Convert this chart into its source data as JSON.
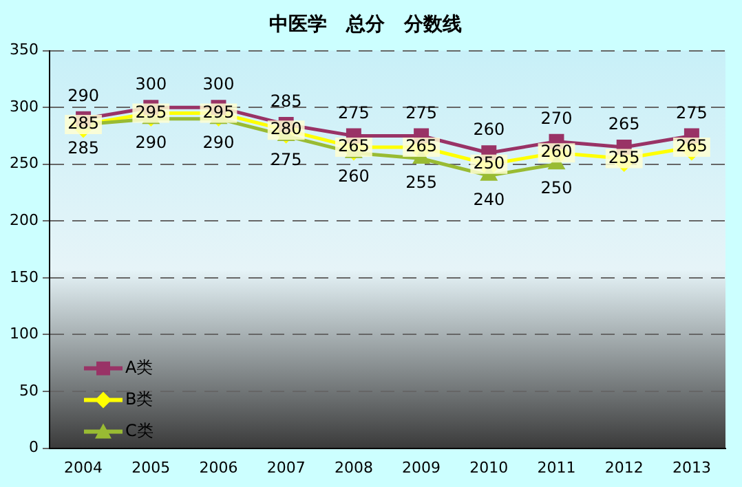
{
  "chart_data": {
    "type": "line",
    "title": "中医学　总分　分数线",
    "categories": [
      "2004",
      "2005",
      "2006",
      "2007",
      "2008",
      "2009",
      "2010",
      "2011",
      "2012",
      "2013"
    ],
    "series": [
      {
        "name": "A类",
        "color": "#993366",
        "marker": "square",
        "values": [
          290,
          300,
          300,
          285,
          275,
          275,
          260,
          270,
          265,
          275
        ]
      },
      {
        "name": "B类",
        "color": "#ffff00",
        "marker": "diamond",
        "values": [
          285,
          295,
          295,
          280,
          265,
          265,
          250,
          260,
          255,
          265
        ]
      },
      {
        "name": "C类",
        "color": "#99bb33",
        "marker": "triangle",
        "values": [
          285,
          290,
          290,
          275,
          260,
          255,
          240,
          250,
          null,
          null
        ]
      }
    ],
    "ylim": [
      0,
      350
    ],
    "yticks": [
      0,
      50,
      100,
      150,
      200,
      250,
      300,
      350
    ],
    "grid": "y",
    "legend": "bottom left",
    "data_labels": true
  }
}
